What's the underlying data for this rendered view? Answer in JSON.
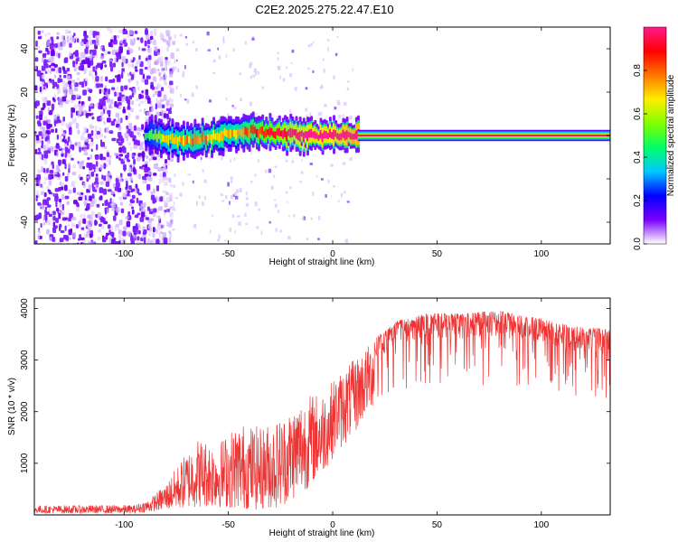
{
  "title": "C2E2.2025.275.22.47.E10",
  "chart_data": [
    {
      "type": "heatmap",
      "xlabel": "Height of straight line (km)",
      "ylabel": "Frequency (Hz)",
      "xlim": [
        -143,
        133
      ],
      "ylim": [
        -50,
        50
      ],
      "xticks": [
        -100,
        -50,
        0,
        50,
        100
      ],
      "yticks": [
        -40,
        -20,
        0,
        20,
        40
      ],
      "colorbar": {
        "label": "Normalized spectral amplitude",
        "range": [
          0,
          1
        ],
        "ticks": [
          "0.0",
          "0.2",
          "0.4",
          "0.6",
          "0.8"
        ],
        "colormap": [
          "#ffffff",
          "#7a00ff",
          "#0000ff",
          "#00c8ff",
          "#00ff66",
          "#80ff00",
          "#ffee00",
          "#ff7700",
          "#ff0000",
          "#ff1a8c"
        ]
      },
      "noise_region": {
        "x_range": [
          -143,
          -85
        ],
        "freq_range": [
          -50,
          50
        ],
        "amplitude": 0.15
      },
      "signal_track": [
        {
          "x": -90,
          "freq": 0,
          "amplitude": 0.3
        },
        {
          "x": -80,
          "freq": -1,
          "amplitude": 0.45
        },
        {
          "x": -70,
          "freq": -3,
          "amplitude": 0.55
        },
        {
          "x": -60,
          "freq": -1,
          "amplitude": 0.55
        },
        {
          "x": -50,
          "freq": 1,
          "amplitude": 0.5
        },
        {
          "x": -40,
          "freq": 2,
          "amplitude": 0.6
        },
        {
          "x": -30,
          "freq": 1,
          "amplitude": 0.7
        },
        {
          "x": -20,
          "freq": 0.5,
          "amplitude": 0.8
        },
        {
          "x": -10,
          "freq": 0,
          "amplitude": 0.85
        },
        {
          "x": 0,
          "freq": 0,
          "amplitude": 0.9
        },
        {
          "x": 10,
          "freq": 0,
          "amplitude": 0.95
        },
        {
          "x": 133,
          "freq": 0,
          "amplitude": 1.0
        }
      ]
    },
    {
      "type": "line",
      "xlabel": "Height of straight line (km)",
      "ylabel": "SNR (10 * v/v)",
      "xlim": [
        -143,
        133
      ],
      "ylim": [
        0,
        4200
      ],
      "xticks": [
        -100,
        -50,
        0,
        50,
        100
      ],
      "yticks": [
        1000,
        2000,
        3000,
        4000
      ],
      "color": "#ee3333",
      "envelope": [
        {
          "x": -143,
          "low": 30,
          "high": 180
        },
        {
          "x": -95,
          "low": 30,
          "high": 190
        },
        {
          "x": -88,
          "low": 60,
          "high": 300
        },
        {
          "x": -80,
          "low": 100,
          "high": 600
        },
        {
          "x": -72,
          "low": 120,
          "high": 1100
        },
        {
          "x": -65,
          "low": 150,
          "high": 1500
        },
        {
          "x": -55,
          "low": 150,
          "high": 1400
        },
        {
          "x": -45,
          "low": 120,
          "high": 1800
        },
        {
          "x": -35,
          "low": 100,
          "high": 1700
        },
        {
          "x": -25,
          "low": 150,
          "high": 1900
        },
        {
          "x": -15,
          "low": 400,
          "high": 2300
        },
        {
          "x": -5,
          "low": 800,
          "high": 2400
        },
        {
          "x": 0,
          "low": 1100,
          "high": 2600
        },
        {
          "x": 10,
          "low": 1500,
          "high": 3000
        },
        {
          "x": 20,
          "low": 2100,
          "high": 3400
        },
        {
          "x": 30,
          "low": 2400,
          "high": 3750
        },
        {
          "x": 45,
          "low": 2500,
          "high": 3900
        },
        {
          "x": 60,
          "low": 2500,
          "high": 3900
        },
        {
          "x": 80,
          "low": 2500,
          "high": 3950
        },
        {
          "x": 100,
          "low": 2500,
          "high": 3800
        },
        {
          "x": 115,
          "low": 2300,
          "high": 3650
        },
        {
          "x": 133,
          "low": 2200,
          "high": 3600
        }
      ]
    }
  ]
}
